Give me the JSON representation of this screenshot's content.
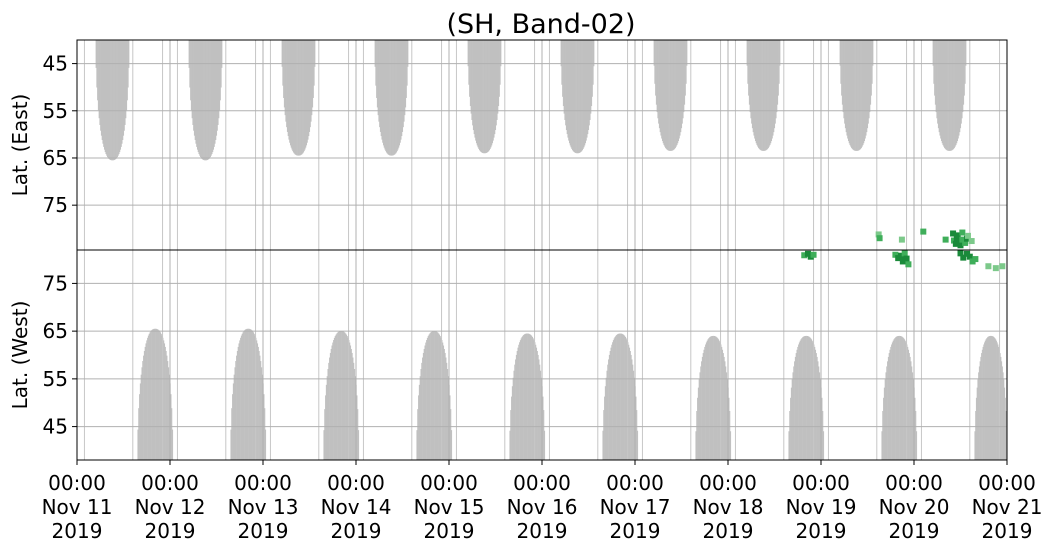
{
  "chart_data": {
    "type": "heatmap",
    "title": "(SH, Band-02)",
    "panels": [
      {
        "name": "east",
        "ylabel": "Lat. (East)",
        "yticks": [
          45,
          55,
          65,
          75
        ],
        "ylim": [
          40,
          84.5
        ],
        "y_direction": "down"
      },
      {
        "name": "west",
        "ylabel": "Lat. (West)",
        "yticks": [
          75,
          65,
          55,
          45
        ],
        "ylim": [
          82,
          38
        ],
        "y_direction": "up"
      }
    ],
    "x_ticks": [
      {
        "time": "00:00",
        "date": "Nov 11",
        "year": "2019"
      },
      {
        "time": "00:00",
        "date": "Nov 12",
        "year": "2019"
      },
      {
        "time": "00:00",
        "date": "Nov 13",
        "year": "2019"
      },
      {
        "time": "00:00",
        "date": "Nov 14",
        "year": "2019"
      },
      {
        "time": "00:00",
        "date": "Nov 15",
        "year": "2019"
      },
      {
        "time": "00:00",
        "date": "Nov 16",
        "year": "2019"
      },
      {
        "time": "00:00",
        "date": "Nov 17",
        "year": "2019"
      },
      {
        "time": "00:00",
        "date": "Nov 18",
        "year": "2019"
      },
      {
        "time": "00:00",
        "date": "Nov 19",
        "year": "2019"
      },
      {
        "time": "00:00",
        "date": "Nov 20",
        "year": "2019"
      },
      {
        "time": "00:00",
        "date": "Nov 21",
        "year": "2019"
      }
    ],
    "xlim": [
      "2019-11-11T00:00",
      "2019-11-21T00:00"
    ],
    "grid": true,
    "coverage_color": "#c0c0c0",
    "detection_colors": [
      "#1a8a3a",
      "#3fae5a",
      "#7cc98a"
    ],
    "east_coverage": [
      {
        "day_start": 0.2,
        "day_end": 0.56,
        "min_lat": 65.5
      },
      {
        "day_start": 1.2,
        "day_end": 1.56,
        "min_lat": 65.5
      },
      {
        "day_start": 2.2,
        "day_end": 2.56,
        "min_lat": 64.5
      },
      {
        "day_start": 3.2,
        "day_end": 3.56,
        "min_lat": 64.5
      },
      {
        "day_start": 4.2,
        "day_end": 4.56,
        "min_lat": 64.0
      },
      {
        "day_start": 5.2,
        "day_end": 5.56,
        "min_lat": 64.0
      },
      {
        "day_start": 6.2,
        "day_end": 6.56,
        "min_lat": 63.5
      },
      {
        "day_start": 7.2,
        "day_end": 7.56,
        "min_lat": 63.5
      },
      {
        "day_start": 8.2,
        "day_end": 8.56,
        "min_lat": 63.5
      },
      {
        "day_start": 9.2,
        "day_end": 9.56,
        "min_lat": 63.5
      }
    ],
    "west_coverage": [
      {
        "day_start": 0.65,
        "day_end": 1.03,
        "max_lat": 65.5
      },
      {
        "day_start": 1.65,
        "day_end": 2.03,
        "max_lat": 65.5
      },
      {
        "day_start": 2.65,
        "day_end": 3.03,
        "max_lat": 65.0
      },
      {
        "day_start": 3.65,
        "day_end": 4.03,
        "max_lat": 65.0
      },
      {
        "day_start": 4.65,
        "day_end": 5.03,
        "max_lat": 64.5
      },
      {
        "day_start": 5.65,
        "day_end": 6.03,
        "max_lat": 64.5
      },
      {
        "day_start": 6.65,
        "day_end": 7.03,
        "max_lat": 64.0
      },
      {
        "day_start": 7.65,
        "day_end": 8.03,
        "max_lat": 64.0
      },
      {
        "day_start": 8.65,
        "day_end": 9.03,
        "max_lat": 64.0
      },
      {
        "day_start": 9.65,
        "day_end": 10.0,
        "max_lat": 64.0
      }
    ],
    "swath_line_offsets": [
      0.08,
      0.6,
      0.92
    ],
    "east_detections": [
      {
        "day": 8.62,
        "lat": 81.2,
        "level": 2
      },
      {
        "day": 8.63,
        "lat": 82.0,
        "level": 1
      },
      {
        "day": 8.87,
        "lat": 82.3,
        "level": 2
      },
      {
        "day": 9.1,
        "lat": 80.6,
        "level": 1
      },
      {
        "day": 9.34,
        "lat": 82.3,
        "level": 1
      },
      {
        "day": 9.42,
        "lat": 81.0,
        "level": 0
      },
      {
        "day": 9.43,
        "lat": 82.5,
        "level": 1
      },
      {
        "day": 9.45,
        "lat": 83.2,
        "level": 0
      },
      {
        "day": 9.46,
        "lat": 82.0,
        "level": 0
      },
      {
        "day": 9.47,
        "lat": 81.4,
        "level": 0
      },
      {
        "day": 9.49,
        "lat": 82.8,
        "level": 0
      },
      {
        "day": 9.5,
        "lat": 83.5,
        "level": 0
      },
      {
        "day": 9.52,
        "lat": 82.3,
        "level": 1
      },
      {
        "day": 9.52,
        "lat": 80.8,
        "level": 1
      },
      {
        "day": 9.55,
        "lat": 83.0,
        "level": 1
      },
      {
        "day": 9.57,
        "lat": 82.1,
        "level": 0
      },
      {
        "day": 9.58,
        "lat": 81.5,
        "level": 2
      },
      {
        "day": 9.62,
        "lat": 82.6,
        "level": 2
      }
    ],
    "west_detections": [
      {
        "day": 7.82,
        "lat": 80.9,
        "level": 1
      },
      {
        "day": 7.86,
        "lat": 81.2,
        "level": 0
      },
      {
        "day": 7.89,
        "lat": 80.6,
        "level": 0
      },
      {
        "day": 7.92,
        "lat": 81.0,
        "level": 1
      },
      {
        "day": 8.8,
        "lat": 81.0,
        "level": 1
      },
      {
        "day": 8.83,
        "lat": 80.3,
        "level": 0
      },
      {
        "day": 8.86,
        "lat": 80.8,
        "level": 0
      },
      {
        "day": 8.88,
        "lat": 79.6,
        "level": 0
      },
      {
        "day": 8.9,
        "lat": 81.3,
        "level": 1
      },
      {
        "day": 8.92,
        "lat": 80.2,
        "level": 0
      },
      {
        "day": 8.94,
        "lat": 79.0,
        "level": 1
      },
      {
        "day": 9.5,
        "lat": 81.3,
        "level": 0
      },
      {
        "day": 9.53,
        "lat": 80.4,
        "level": 0
      },
      {
        "day": 9.57,
        "lat": 81.2,
        "level": 0
      },
      {
        "day": 9.6,
        "lat": 80.6,
        "level": 0
      },
      {
        "day": 9.63,
        "lat": 79.6,
        "level": 1
      },
      {
        "day": 9.66,
        "lat": 80.1,
        "level": 1
      },
      {
        "day": 9.8,
        "lat": 78.6,
        "level": 2
      },
      {
        "day": 9.88,
        "lat": 78.2,
        "level": 2
      },
      {
        "day": 9.95,
        "lat": 78.6,
        "level": 2
      }
    ]
  }
}
